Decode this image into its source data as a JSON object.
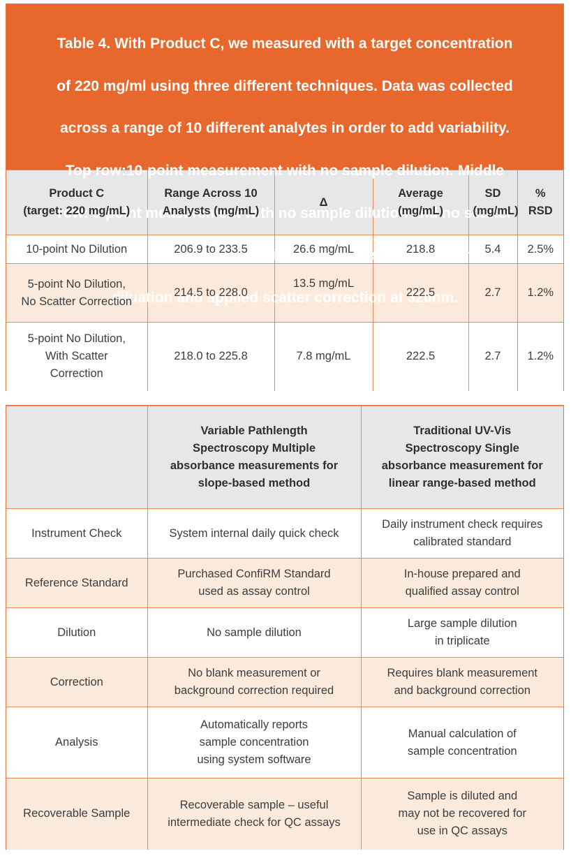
{
  "table1": {
    "caption_lines": [
      "Table 4. With Product C, we measured with a target concentration",
      "of 220 mg/ml using three different techniques. Data was collected",
      "across a range of 10 different analytes in order to add variability.",
      "Top row:10-point measurement with no sample dilution. Middle",
      "row: 5-point measurement with no sample dilution and no scatter",
      "correction. Bottom row: 5-point measurement with no sample",
      "diluation and applied scatter correction at 320nm."
    ],
    "headers": [
      [
        "Product C",
        "(target: 220 mg/mL)"
      ],
      [
        "Range Across 10",
        "Analysts (mg/mL)"
      ],
      [
        "Δ"
      ],
      [
        "Average",
        "(mg/mL)"
      ],
      [
        "SD",
        "(mg/mL)"
      ],
      [
        "%",
        "RSD"
      ]
    ],
    "rows": [
      {
        "label": [
          "10-point No Dilution"
        ],
        "range": "206.9 to 233.5",
        "delta": "26.6 mg/mL",
        "average": "218.8",
        "sd": "5.4",
        "rsd": "2.5%"
      },
      {
        "label": [
          "5-point No Dilution,",
          "No Scatter Correction"
        ],
        "range": "214.5 to 228.0",
        "delta": "13.5 mg/mL",
        "average": "222.5",
        "sd": "2.7",
        "rsd": "1.2%"
      },
      {
        "label": [
          "5-point No Dilution,",
          "With Scatter",
          "Correction"
        ],
        "range": "218.0 to 225.8",
        "delta": "7.8 mg/mL",
        "average": "222.5",
        "sd": "2.7",
        "rsd": "1.2%"
      }
    ]
  },
  "table2": {
    "headers": [
      [],
      [
        "Variable Pathlength",
        "Spectroscopy Multiple",
        "absorbance measurements for",
        "slope-based method"
      ],
      [
        "Traditional UV-Vis",
        "Spectroscopy Single",
        "absorbance measurement for",
        "linear range-based method"
      ]
    ],
    "rows": [
      {
        "label": [
          "Instrument Check"
        ],
        "vp": [
          "System internal daily quick check"
        ],
        "uv": [
          "Daily instrument check requires",
          "calibrated standard"
        ]
      },
      {
        "label": [
          "Reference Standard"
        ],
        "vp": [
          "Purchased ConfiRM Standard",
          "used as assay control"
        ],
        "uv": [
          "In-house prepared and",
          "qualified assay control"
        ]
      },
      {
        "label": [
          "Dilution"
        ],
        "vp": [
          "No sample dilution"
        ],
        "uv": [
          "Large sample dilution",
          "in triplicate"
        ]
      },
      {
        "label": [
          "Correction"
        ],
        "vp": [
          "No blank measurement or",
          "background correction required"
        ],
        "uv": [
          "Requires blank measurement",
          "and background correction"
        ]
      },
      {
        "label": [
          "Analysis"
        ],
        "vp": [
          "Automatically reports",
          "sample concentration",
          "using system software"
        ],
        "uv": [
          "Manual calculation of",
          "sample concentration"
        ]
      },
      {
        "label": [
          "Recoverable Sample"
        ],
        "vp": [
          "Recoverable sample – useful",
          "intermediate check for QC assays"
        ],
        "uv": [
          "Sample is diluted and",
          "may not be recovered for",
          "use in QC assays"
        ]
      }
    ]
  }
}
